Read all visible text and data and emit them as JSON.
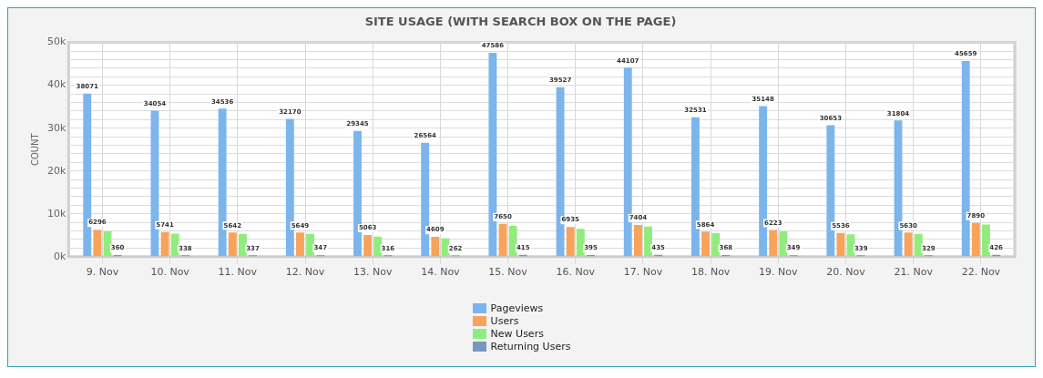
{
  "chart_data": {
    "type": "bar",
    "title": "SITE USAGE (WITH SEARCH BOX ON THE PAGE)",
    "ylabel": "COUNT",
    "categories": [
      "9. Nov",
      "10. Nov",
      "11. Nov",
      "12. Nov",
      "13. Nov",
      "14. Nov",
      "15. Nov",
      "16. Nov",
      "17. Nov",
      "18. Nov",
      "19. Nov",
      "20. Nov",
      "21. Nov",
      "22. Nov"
    ],
    "series": [
      {
        "name": "Pageviews",
        "color": "#7cb5ec",
        "values": [
          38071,
          34054,
          34536,
          32170,
          29345,
          26564,
          47586,
          39527,
          44107,
          32531,
          35148,
          30653,
          31804,
          45659
        ],
        "value_labels": [
          "38071",
          "34054",
          "34536",
          "32170",
          "29345",
          "26564",
          "47586",
          "39527",
          "44107",
          "32531",
          "35148",
          "30653",
          "31804",
          "45659"
        ]
      },
      {
        "name": "Users",
        "color": "#f7a35c",
        "values": [
          6296,
          5741,
          5642,
          5649,
          5063,
          4609,
          7650,
          6935,
          7404,
          5864,
          6223,
          5536,
          5630,
          7890
        ],
        "value_labels": [
          "6296",
          "5741",
          "5642",
          "5649",
          "5063",
          "4609",
          "7650",
          "6935",
          "7404",
          "5864",
          "6223",
          "5536",
          "5630",
          "7890"
        ]
      },
      {
        "name": "New Users",
        "color": "#90ed7d",
        "values": [
          5900,
          5400,
          5300,
          5300,
          4700,
          4300,
          7200,
          6500,
          7000,
          5500,
          5900,
          5200,
          5300,
          7500
        ]
      },
      {
        "name": "Returning Users",
        "color": "#7798bf",
        "values": [
          360,
          338,
          337,
          347,
          316,
          262,
          415,
          395,
          435,
          368,
          349,
          339,
          329,
          426
        ],
        "value_labels": [
          "360",
          "338",
          "337",
          "347",
          "316",
          "262",
          "415",
          "395",
          "435",
          "368",
          "349",
          "339",
          "329",
          "426"
        ]
      }
    ],
    "ylim": [
      0,
      50000
    ],
    "yticks": [
      {
        "value": 0,
        "label": "0k"
      },
      {
        "value": 2000,
        "label": null
      },
      {
        "value": 4000,
        "label": null
      },
      {
        "value": 6000,
        "label": null
      },
      {
        "value": 8000,
        "label": null
      },
      {
        "value": 10000,
        "label": "10k"
      },
      {
        "value": 12000,
        "label": null
      },
      {
        "value": 14000,
        "label": null
      },
      {
        "value": 16000,
        "label": null
      },
      {
        "value": 18000,
        "label": null
      },
      {
        "value": 20000,
        "label": "20k"
      },
      {
        "value": 22000,
        "label": null
      },
      {
        "value": 24000,
        "label": null
      },
      {
        "value": 26000,
        "label": null
      },
      {
        "value": 28000,
        "label": null
      },
      {
        "value": 30000,
        "label": "30k"
      },
      {
        "value": 32000,
        "label": null
      },
      {
        "value": 34000,
        "label": null
      },
      {
        "value": 36000,
        "label": null
      },
      {
        "value": 38000,
        "label": null
      },
      {
        "value": 40000,
        "label": "40k"
      },
      {
        "value": 42000,
        "label": null
      },
      {
        "value": 44000,
        "label": null
      },
      {
        "value": 46000,
        "label": null
      },
      {
        "value": 48000,
        "label": null
      },
      {
        "value": 50000,
        "label": "50k"
      }
    ],
    "grid": true,
    "legend": "bottom"
  }
}
